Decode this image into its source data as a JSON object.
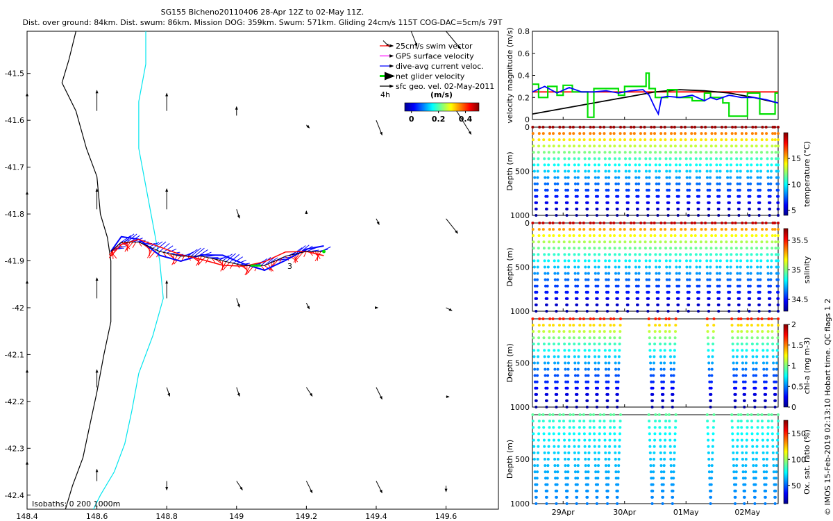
{
  "title": {
    "line1": "SG155 Bicheno20110406 28-Apr 12Z to 02-May 11Z.",
    "line2": "Dist. over ground: 84km. Dist. swum: 86km. Mission DOG: 359km. Swum: 571km. Gliding 24cm/s 115T COG-DAC=5cm/s 79T"
  },
  "side_note": "© IMOS 15-Feb-2019 02:13:10 Hobart time. QC flags 1  2",
  "map": {
    "xlim": [
      148.4,
      149.75
    ],
    "ylim": [
      -42.43,
      -41.41
    ],
    "x_ticks": [
      "148.4",
      "148.6",
      "148.8",
      "149",
      "149.2",
      "149.4",
      "149.6"
    ],
    "y_ticks": [
      "-41.5",
      "-41.6",
      "-41.7",
      "-41.8",
      "-41.9",
      "-42",
      "-42.1",
      "-42.2",
      "-42.3",
      "-42.4"
    ],
    "isobath_label": "Isobaths: 0   200  1000m",
    "track_label": "3",
    "time_label": "4h",
    "colorbar": {
      "label": "(m/s)",
      "ticks": [
        "0",
        "0.2",
        "0.4"
      ],
      "range": [
        -0.05,
        0.5
      ]
    },
    "legend": [
      {
        "label": "25cm/s swim vector",
        "color": "#ff0000"
      },
      {
        "label": "GPS surface velocity",
        "color": "#ff00ff"
      },
      {
        "label": "dive-avg current veloc.",
        "color": "#0000ff"
      },
      {
        "label": "net glider velocity",
        "color": "#00dd00"
      },
      {
        "label": "sfc geo. vel. 02-May-2011",
        "color": "#000000"
      }
    ],
    "coast": [
      [
        148.54,
        -41.41
      ],
      [
        148.52,
        -41.47
      ],
      [
        148.5,
        -41.52
      ],
      [
        148.54,
        -41.58
      ],
      [
        148.57,
        -41.66
      ],
      [
        148.6,
        -41.72
      ],
      [
        148.61,
        -41.8
      ],
      [
        148.63,
        -41.85
      ],
      [
        148.64,
        -41.9
      ],
      [
        148.64,
        -41.96
      ],
      [
        148.64,
        -42.03
      ],
      [
        148.62,
        -42.1
      ],
      [
        148.6,
        -42.18
      ],
      [
        148.58,
        -42.25
      ],
      [
        148.56,
        -42.32
      ],
      [
        148.53,
        -42.38
      ],
      [
        148.51,
        -42.43
      ]
    ],
    "isobath_200": [
      [
        148.74,
        -41.41
      ],
      [
        148.74,
        -41.48
      ],
      [
        148.72,
        -41.56
      ],
      [
        148.72,
        -41.66
      ],
      [
        148.74,
        -41.74
      ],
      [
        148.76,
        -41.82
      ],
      [
        148.78,
        -41.9
      ],
      [
        148.79,
        -41.98
      ],
      [
        148.76,
        -42.06
      ],
      [
        148.72,
        -42.14
      ],
      [
        148.7,
        -42.22
      ],
      [
        148.68,
        -42.29
      ],
      [
        148.65,
        -42.35
      ],
      [
        148.61,
        -42.4
      ],
      [
        148.59,
        -42.43
      ]
    ],
    "track": [
      [
        148.64,
        -41.88
      ],
      [
        148.67,
        -41.86
      ],
      [
        148.72,
        -41.86
      ],
      [
        148.78,
        -41.88
      ],
      [
        148.84,
        -41.89
      ],
      [
        148.9,
        -41.89
      ],
      [
        148.96,
        -41.9
      ],
      [
        149.02,
        -41.91
      ],
      [
        149.08,
        -41.91
      ],
      [
        149.14,
        -41.89
      ],
      [
        149.2,
        -41.88
      ],
      [
        149.25,
        -41.88
      ]
    ],
    "surface_vectors": [
      {
        "lon": 148.4,
        "lat": -41.58,
        "u": 0,
        "v": 0.06
      },
      {
        "lon": 148.6,
        "lat": -41.58,
        "u": 0,
        "v": 0.07
      },
      {
        "lon": 148.8,
        "lat": -41.58,
        "u": 0,
        "v": 0.06
      },
      {
        "lon": 149,
        "lat": -41.59,
        "u": 0,
        "v": 0.03
      },
      {
        "lon": 149.2,
        "lat": -41.61,
        "u": 0.01,
        "v": -0.01
      },
      {
        "lon": 149.4,
        "lat": -41.6,
        "u": 0.02,
        "v": -0.05
      },
      {
        "lon": 148.4,
        "lat": -41.79,
        "u": 0,
        "v": 0.06
      },
      {
        "lon": 148.6,
        "lat": -41.79,
        "u": 0,
        "v": 0.07
      },
      {
        "lon": 148.8,
        "lat": -41.79,
        "u": 0,
        "v": 0.07
      },
      {
        "lon": 149,
        "lat": -41.79,
        "u": 0.01,
        "v": -0.03
      },
      {
        "lon": 149.2,
        "lat": -41.8,
        "u": 0,
        "v": 0.01
      },
      {
        "lon": 149.4,
        "lat": -41.81,
        "u": 0.01,
        "v": -0.02
      },
      {
        "lon": 149.6,
        "lat": -41.81,
        "u": 0.04,
        "v": -0.05
      },
      {
        "lon": 148.4,
        "lat": -41.98,
        "u": 0,
        "v": 0.06
      },
      {
        "lon": 148.6,
        "lat": -41.98,
        "u": 0,
        "v": 0.07
      },
      {
        "lon": 148.8,
        "lat": -41.98,
        "u": 0,
        "v": 0.06
      },
      {
        "lon": 149,
        "lat": -41.98,
        "u": 0.01,
        "v": -0.03
      },
      {
        "lon": 149.2,
        "lat": -41.99,
        "u": 0.01,
        "v": -0.02
      },
      {
        "lon": 149.4,
        "lat": -42,
        "u": 0.005,
        "v": 0
      },
      {
        "lon": 149.6,
        "lat": -42,
        "u": 0.02,
        "v": -0.01
      },
      {
        "lon": 148.4,
        "lat": -42.17,
        "u": 0,
        "v": 0.06
      },
      {
        "lon": 148.6,
        "lat": -42.17,
        "u": 0,
        "v": 0.06
      },
      {
        "lon": 148.8,
        "lat": -42.17,
        "u": 0.01,
        "v": -0.03
      },
      {
        "lon": 149,
        "lat": -42.17,
        "u": 0.01,
        "v": -0.03
      },
      {
        "lon": 149.2,
        "lat": -42.17,
        "u": 0.02,
        "v": -0.03
      },
      {
        "lon": 149.4,
        "lat": -42.17,
        "u": 0.02,
        "v": -0.04
      },
      {
        "lon": 149.6,
        "lat": -42.19,
        "u": 0.01,
        "v": 0
      },
      {
        "lon": 148.4,
        "lat": -42.36,
        "u": 0,
        "v": 0.05
      },
      {
        "lon": 148.6,
        "lat": -42.37,
        "u": 0,
        "v": 0.04
      },
      {
        "lon": 148.8,
        "lat": -42.37,
        "u": 0,
        "v": -0.03
      },
      {
        "lon": 149,
        "lat": -42.37,
        "u": 0.02,
        "v": -0.03
      },
      {
        "lon": 149.2,
        "lat": -42.37,
        "u": 0.02,
        "v": -0.04
      },
      {
        "lon": 149.4,
        "lat": -42.37,
        "u": 0.02,
        "v": -0.04
      },
      {
        "lon": 149.6,
        "lat": -42.38,
        "u": 0,
        "v": -0.02
      },
      {
        "lon": 149.42,
        "lat": -41.43,
        "u": 0.02,
        "v": -0.02
      },
      {
        "lon": 149.5,
        "lat": -41.41,
        "u": 0.02,
        "v": -0.05
      },
      {
        "lon": 149.6,
        "lat": -41.41,
        "u": 0.05,
        "v": -0.06
      },
      {
        "lon": 149.63,
        "lat": -41.58,
        "u": 0.05,
        "v": -0.08
      }
    ]
  },
  "chart_data": [
    {
      "type": "line",
      "ylabel": "velocity magnitude (m/s)",
      "ylim": [
        0,
        0.8
      ],
      "yticks": [
        "0",
        "0.2",
        "0.4",
        "0.6",
        "0.8"
      ],
      "xlim": [
        0,
        4
      ],
      "xticks": [
        0.5,
        1.5,
        2.5,
        3.5
      ],
      "series": [
        {
          "color": "#ff0000",
          "x": [
            0,
            4
          ],
          "values": [
            0.25,
            0.25
          ]
        },
        {
          "color": "#000000",
          "x": [
            0,
            0.4,
            0.8,
            1.2,
            1.6,
            2.0,
            2.4,
            2.8,
            3.2,
            3.6,
            4.0
          ],
          "values": [
            0.05,
            0.09,
            0.13,
            0.17,
            0.21,
            0.25,
            0.27,
            0.26,
            0.24,
            0.2,
            0.15
          ]
        },
        {
          "color": "#00e000",
          "x": [
            0,
            0.1,
            0.1,
            0.25,
            0.25,
            0.4,
            0.4,
            0.5,
            0.5,
            0.65,
            0.65,
            0.9,
            0.9,
            1.0,
            1.0,
            1.4,
            1.4,
            1.5,
            1.5,
            1.85,
            1.85,
            1.9,
            1.9,
            2.0,
            2.0,
            2.2,
            2.2,
            2.35,
            2.35,
            2.6,
            2.6,
            2.8,
            2.8,
            2.9,
            2.9,
            3.1,
            3.1,
            3.2,
            3.2,
            3.5,
            3.5,
            3.7,
            3.7,
            3.95,
            3.95,
            4.0
          ],
          "values": [
            0.32,
            0.32,
            0.2,
            0.2,
            0.3,
            0.3,
            0.22,
            0.22,
            0.31,
            0.31,
            0.25,
            0.25,
            0.02,
            0.02,
            0.28,
            0.28,
            0.22,
            0.22,
            0.3,
            0.3,
            0.42,
            0.42,
            0.28,
            0.28,
            0.2,
            0.2,
            0.27,
            0.27,
            0.2,
            0.2,
            0.17,
            0.17,
            0.24,
            0.24,
            0.2,
            0.2,
            0.15,
            0.15,
            0.03,
            0.03,
            0.24,
            0.24,
            0.05,
            0.05,
            0.24,
            0.24
          ]
        },
        {
          "color": "#0000ff",
          "x": [
            0,
            0.2,
            0.4,
            0.6,
            0.8,
            1.0,
            1.2,
            1.4,
            1.6,
            1.8,
            1.9,
            2.0,
            2.05,
            2.1,
            2.2,
            2.4,
            2.6,
            2.8,
            2.9,
            3.0,
            3.2,
            3.4,
            3.6,
            3.8,
            4.0
          ],
          "values": [
            0.25,
            0.3,
            0.24,
            0.29,
            0.25,
            0.25,
            0.26,
            0.24,
            0.26,
            0.27,
            0.22,
            0.1,
            0.05,
            0.2,
            0.21,
            0.2,
            0.22,
            0.17,
            0.2,
            0.18,
            0.22,
            0.2,
            0.2,
            0.18,
            0.15
          ]
        }
      ]
    },
    {
      "type": "scatter",
      "ylabel": "Depth (m)",
      "cbar_label": "temperature (°C)",
      "cbar_ticks": [
        "5",
        "10",
        "15"
      ],
      "crange": [
        4,
        20
      ],
      "ylim": [
        0,
        1000
      ],
      "yticks": [
        "0",
        "500",
        "1000"
      ],
      "profiles": [
        0.06,
        0.23,
        0.39,
        0.56,
        0.72,
        0.89,
        1.05,
        1.22,
        1.38,
        1.55,
        1.71,
        1.88,
        2.04,
        2.21,
        2.37,
        2.54,
        2.7,
        2.87,
        3.03,
        3.2,
        3.36,
        3.53,
        3.69,
        3.86,
        4.0
      ],
      "max_depth": 1000,
      "value_top": 19.5,
      "value_bottom": 4.5
    },
    {
      "type": "scatter",
      "ylabel": "Depth (m)",
      "cbar_label": "salinity",
      "cbar_ticks": [
        "34.5",
        "35",
        "35.5"
      ],
      "crange": [
        34.3,
        35.7
      ],
      "ylim": [
        0,
        1000
      ],
      "yticks": [
        "0",
        "500",
        "1000"
      ],
      "profiles": [
        0.06,
        0.23,
        0.39,
        0.56,
        0.72,
        0.89,
        1.05,
        1.22,
        1.38,
        1.55,
        1.71,
        1.88,
        2.04,
        2.21,
        2.37,
        2.54,
        2.7,
        2.87,
        3.03,
        3.2,
        3.36,
        3.53,
        3.69,
        3.86,
        4.0
      ],
      "max_depth": 1000,
      "value_top": 35.6,
      "value_bottom": 34.35
    },
    {
      "type": "scatter",
      "ylabel": "Depth (m)",
      "cbar_label": "chl-a (mg m-3)",
      "cbar_ticks": [
        "0",
        "0.5",
        "1",
        "1.5",
        "2"
      ],
      "crange": [
        0,
        2
      ],
      "ylim": [
        0,
        1000
      ],
      "yticks": [
        "500",
        "1000"
      ],
      "profiles": [
        0.06,
        0.23,
        0.39,
        0.56,
        0.72,
        0.89,
        1.05,
        1.22,
        1.38,
        1.95,
        2.12,
        2.28,
        2.9,
        3.3,
        3.45,
        3.62,
        3.79,
        3.95
      ],
      "max_depth": 1000,
      "value_top": 1.7,
      "value_bottom": 0.05
    },
    {
      "type": "scatter",
      "ylabel": "Depth (m)",
      "cbar_label": "Ox. sat. ratio (%)",
      "cbar_ticks": [
        "50",
        "100",
        "150"
      ],
      "crange": [
        15,
        175
      ],
      "ylim": [
        0,
        1000
      ],
      "yticks": [
        "500",
        "1000"
      ],
      "xtick_labels": [
        "29Apr",
        "30Apr",
        "01May",
        "02May"
      ],
      "profiles": [
        0.06,
        0.23,
        0.39,
        0.56,
        0.72,
        0.89,
        1.05,
        1.22,
        1.38,
        1.95,
        2.12,
        2.28,
        2.9,
        3.3,
        3.45,
        3.62,
        3.79,
        3.95
      ],
      "max_depth": 1000,
      "value_top": 90,
      "value_bottom": 55
    }
  ]
}
